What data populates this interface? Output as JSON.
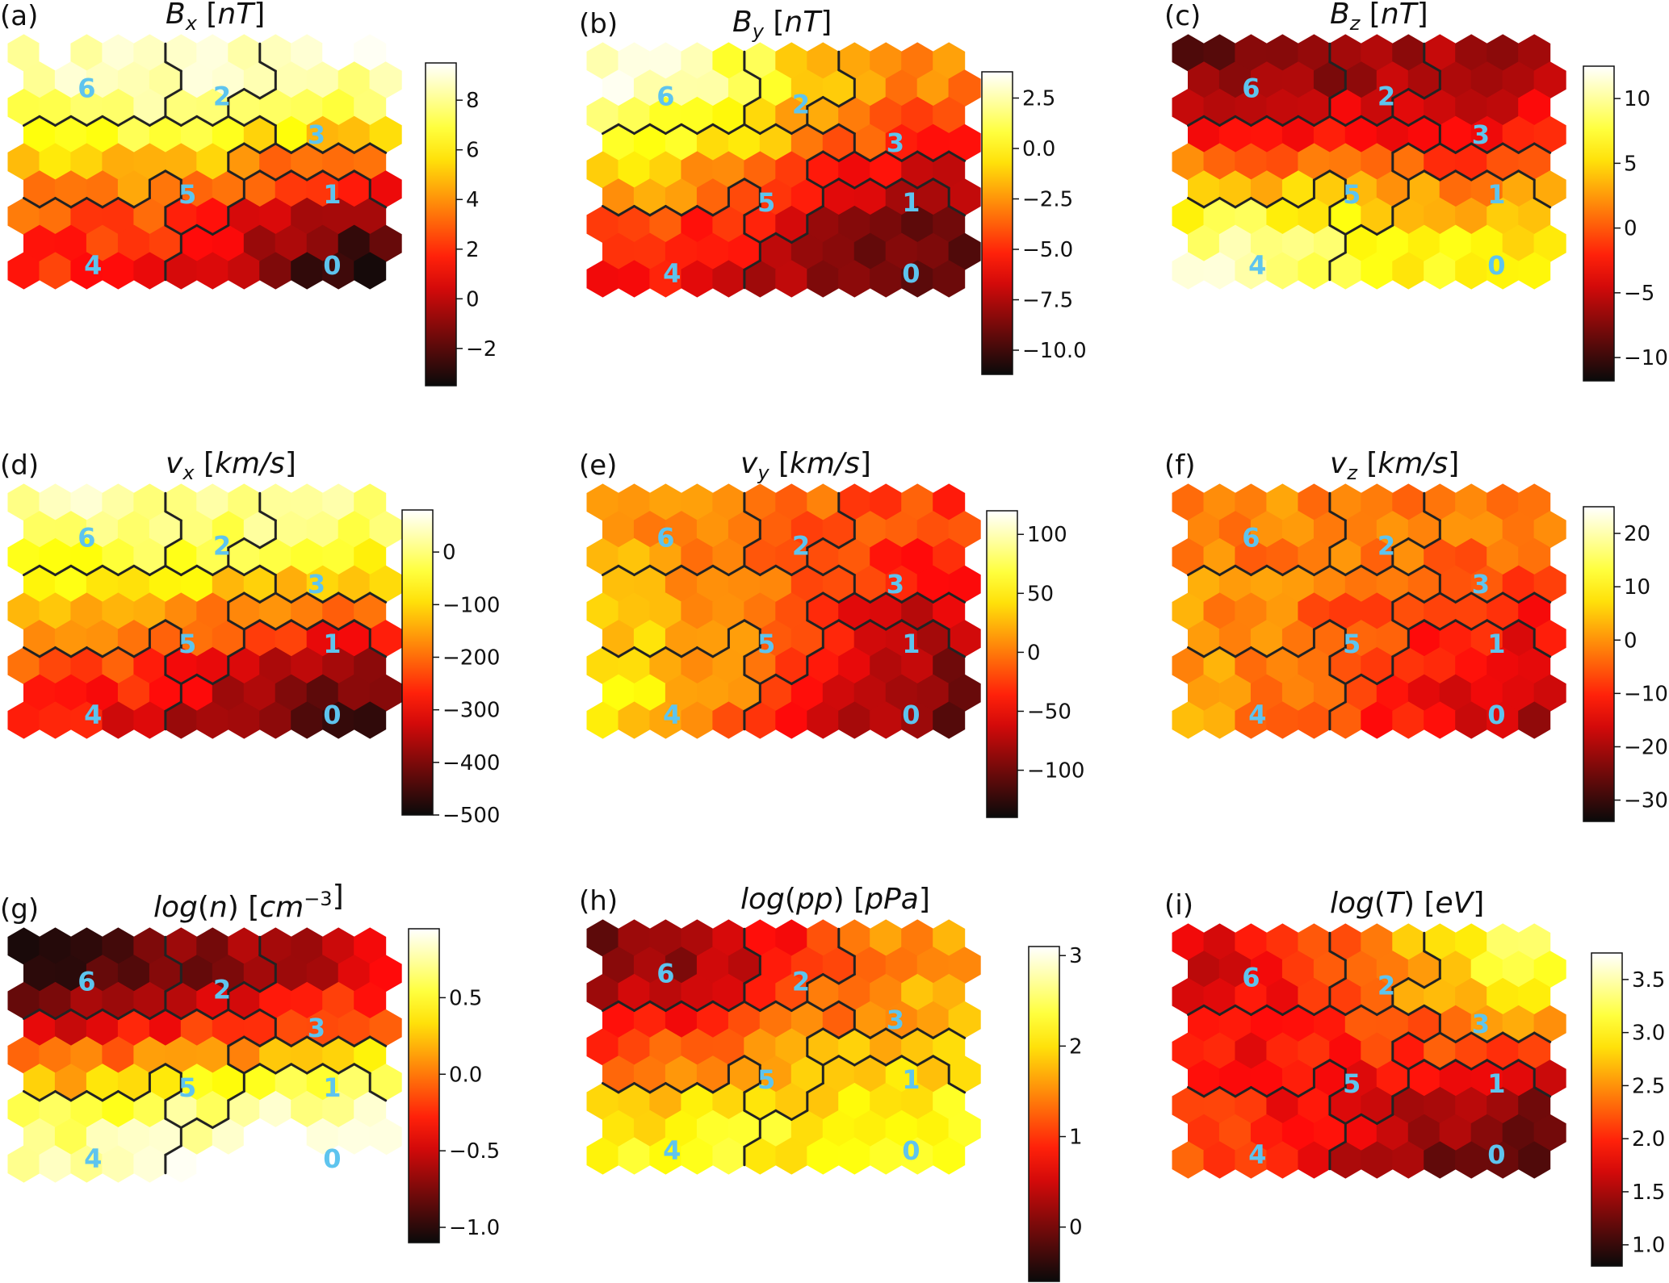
{
  "chart_data": [
    {
      "type": "heatmap",
      "subtype": "hexagonal self-organizing map",
      "panel_label": "(a)",
      "title": "B",
      "title_sub": "x",
      "title_unit": "nT",
      "colormap": "hot",
      "range": [
        -3.5,
        9.5
      ],
      "ticks": [
        "8",
        "6",
        "4",
        "2",
        "0",
        "−2"
      ],
      "tick_values": [
        8,
        6,
        4,
        2,
        0,
        -2
      ],
      "cluster_labels": [
        "6",
        "2",
        "3",
        "5",
        "1",
        "4",
        "0"
      ],
      "field": "bx"
    },
    {
      "type": "heatmap",
      "subtype": "hexagonal self-organizing map",
      "panel_label": "(b)",
      "title": "B",
      "title_sub": "y",
      "title_unit": "nT",
      "colormap": "hot",
      "range": [
        -11.2,
        3.8
      ],
      "ticks": [
        "2.5",
        "0.0",
        "−2.5",
        "−5.0",
        "−7.5",
        "−10.0"
      ],
      "tick_values": [
        2.5,
        0.0,
        -2.5,
        -5.0,
        -7.5,
        -10.0
      ],
      "cluster_labels": [
        "6",
        "2",
        "3",
        "5",
        "1",
        "4",
        "0"
      ],
      "field": "by"
    },
    {
      "type": "heatmap",
      "subtype": "hexagonal self-organizing map",
      "panel_label": "(c)",
      "title": "B",
      "title_sub": "z",
      "title_unit": "nT",
      "colormap": "hot",
      "range": [
        -11.8,
        12.5
      ],
      "ticks": [
        "10",
        "5",
        "0",
        "−5",
        "−10"
      ],
      "tick_values": [
        10,
        5,
        0,
        -5,
        -10
      ],
      "cluster_labels": [
        "6",
        "2",
        "3",
        "5",
        "1",
        "4",
        "0"
      ],
      "field": "bz"
    },
    {
      "type": "heatmap",
      "subtype": "hexagonal self-organizing map",
      "panel_label": "(d)",
      "title": "v",
      "title_sub": "x",
      "title_unit": "km/s",
      "colormap": "hot",
      "range": [
        -500,
        80
      ],
      "ticks": [
        "0",
        "−100",
        "−200",
        "−300",
        "−400",
        "−500"
      ],
      "tick_values": [
        0,
        -100,
        -200,
        -300,
        -400,
        -500
      ],
      "cluster_labels": [
        "6",
        "2",
        "3",
        "5",
        "1",
        "4",
        "0"
      ],
      "field": "vx"
    },
    {
      "type": "heatmap",
      "subtype": "hexagonal self-organizing map",
      "panel_label": "(e)",
      "title": "v",
      "title_sub": "y",
      "title_unit": "km/s",
      "colormap": "hot",
      "range": [
        -140,
        120
      ],
      "ticks": [
        "100",
        "50",
        "0",
        "−50",
        "−100"
      ],
      "tick_values": [
        100,
        50,
        0,
        -50,
        -100
      ],
      "cluster_labels": [
        "6",
        "2",
        "3",
        "5",
        "1",
        "4",
        "0"
      ],
      "field": "vy"
    },
    {
      "type": "heatmap",
      "subtype": "hexagonal self-organizing map",
      "panel_label": "(f)",
      "title": "v",
      "title_sub": "z",
      "title_unit": "km/s",
      "colormap": "hot",
      "range": [
        -34,
        25
      ],
      "ticks": [
        "20",
        "10",
        "0",
        "−10",
        "−20",
        "−30"
      ],
      "tick_values": [
        20,
        10,
        0,
        -10,
        -20,
        -30
      ],
      "cluster_labels": [
        "6",
        "2",
        "3",
        "5",
        "1",
        "4",
        "0"
      ],
      "field": "vz"
    },
    {
      "type": "heatmap",
      "subtype": "hexagonal self-organizing map",
      "panel_label": "(g)",
      "title": "log",
      "title_arg": "n",
      "title_unit": "cm",
      "title_unit_sup": "−3",
      "colormap": "hot",
      "range": [
        -1.1,
        0.95
      ],
      "ticks": [
        "0.5",
        "0.0",
        "−0.5",
        "−1.0"
      ],
      "tick_values": [
        0.5,
        0.0,
        -0.5,
        -1.0
      ],
      "cluster_labels": [
        "6",
        "2",
        "3",
        "5",
        "1",
        "4",
        "0"
      ],
      "field": "n"
    },
    {
      "type": "heatmap",
      "subtype": "hexagonal self-organizing map",
      "panel_label": "(h)",
      "title": "log",
      "title_arg": "pp",
      "title_unit": "pPa",
      "colormap": "hot",
      "range": [
        -0.6,
        3.1
      ],
      "ticks": [
        "3",
        "2",
        "1",
        "0"
      ],
      "tick_values": [
        3,
        2,
        1,
        0
      ],
      "cluster_labels": [
        "6",
        "2",
        "3",
        "5",
        "1",
        "4",
        "0"
      ],
      "field": "pp"
    },
    {
      "type": "heatmap",
      "subtype": "hexagonal self-organizing map",
      "panel_label": "(i)",
      "title": "log",
      "title_arg": "T",
      "title_unit": "eV",
      "colormap": "hot",
      "range": [
        0.8,
        3.75
      ],
      "ticks": [
        "3.5",
        "3.0",
        "2.5",
        "2.0",
        "1.5",
        "1.0"
      ],
      "tick_values": [
        3.5,
        3.0,
        2.5,
        2.0,
        1.5,
        1.0
      ],
      "cluster_labels": [
        "6",
        "2",
        "3",
        "5",
        "1",
        "4",
        "0"
      ],
      "field": "T"
    }
  ]
}
